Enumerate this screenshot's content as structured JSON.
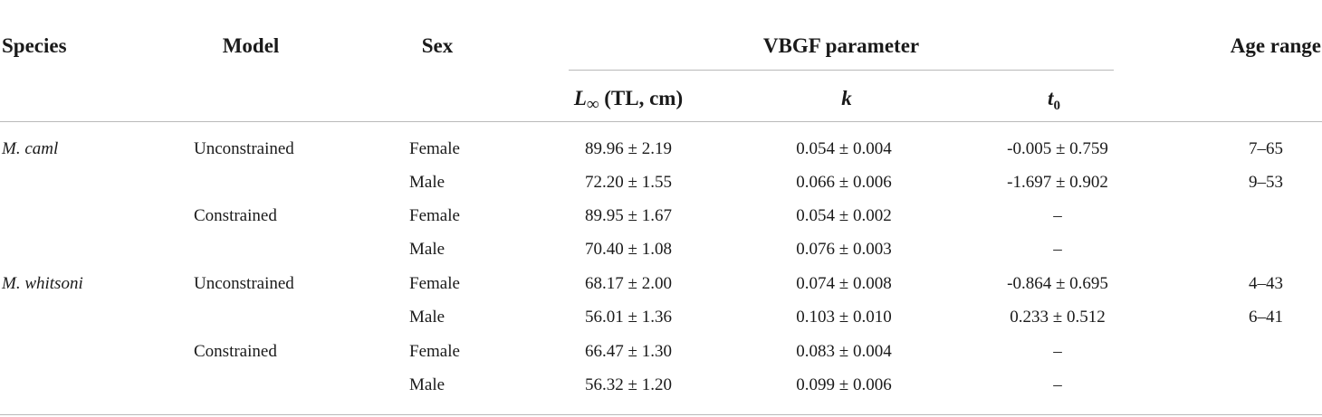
{
  "table": {
    "headers": {
      "species": "Species",
      "model": "Model",
      "sex": "Sex",
      "vbgf_group": "VBGF parameter",
      "linf_symbol": "L",
      "linf_sub": "∞",
      "linf_rest": " (TL, cm)",
      "k": "k",
      "t0_symbol": "t",
      "t0_sub": "0",
      "age_range": "Age range"
    },
    "rows": [
      {
        "species": "M. caml",
        "model": "Unconstrained",
        "sex": "Female",
        "linf": "89.96 ± 2.19",
        "k": "0.054 ± 0.004",
        "t0": "-0.005 ± 0.759",
        "age_range": "7–65"
      },
      {
        "species": "",
        "model": "",
        "sex": "Male",
        "linf": "72.20 ± 1.55",
        "k": "0.066 ± 0.006",
        "t0": "-1.697 ± 0.902",
        "age_range": "9–53"
      },
      {
        "species": "",
        "model": "Constrained",
        "sex": "Female",
        "linf": "89.95 ± 1.67",
        "k": "0.054 ± 0.002",
        "t0": "–",
        "age_range": ""
      },
      {
        "species": "",
        "model": "",
        "sex": "Male",
        "linf": "70.40 ± 1.08",
        "k": "0.076 ± 0.003",
        "t0": "–",
        "age_range": ""
      },
      {
        "species": "M. whitsoni",
        "model": "Unconstrained",
        "sex": "Female",
        "linf": "68.17 ± 2.00",
        "k": "0.074 ± 0.008",
        "t0": "-0.864 ± 0.695",
        "age_range": "4–43"
      },
      {
        "species": "",
        "model": "",
        "sex": "Male",
        "linf": "56.01 ± 1.36",
        "k": "0.103 ± 0.010",
        "t0": "0.233 ± 0.512",
        "age_range": "6–41"
      },
      {
        "species": "",
        "model": "Constrained",
        "sex": "Female",
        "linf": "66.47 ± 1.30",
        "k": "0.083 ± 0.004",
        "t0": "–",
        "age_range": ""
      },
      {
        "species": "",
        "model": "",
        "sex": "Male",
        "linf": "56.32 ± 1.20",
        "k": "0.099 ± 0.006",
        "t0": "–",
        "age_range": ""
      }
    ]
  }
}
